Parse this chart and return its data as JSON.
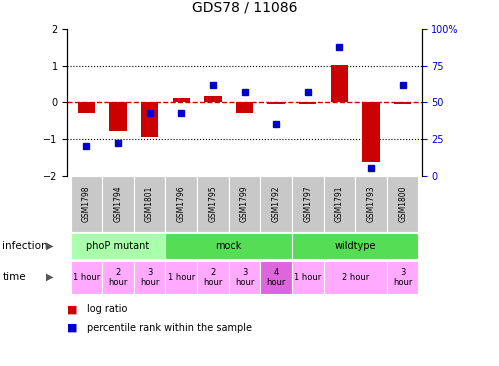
{
  "title": "GDS78 / 11086",
  "samples": [
    "GSM1798",
    "GSM1794",
    "GSM1801",
    "GSM1796",
    "GSM1795",
    "GSM1799",
    "GSM1792",
    "GSM1797",
    "GSM1791",
    "GSM1793",
    "GSM1800"
  ],
  "log_ratio": [
    -0.28,
    -0.78,
    -0.93,
    0.12,
    0.18,
    -0.3,
    -0.05,
    -0.05,
    1.02,
    -1.62,
    -0.05
  ],
  "percentile": [
    20,
    22,
    43,
    43,
    62,
    57,
    35,
    57,
    88,
    5,
    62
  ],
  "ylim": [
    -2,
    2
  ],
  "y2lim": [
    0,
    100
  ],
  "yticks": [
    -2,
    -1,
    0,
    1,
    2
  ],
  "y2ticks": [
    0,
    25,
    50,
    75,
    100
  ],
  "y2ticklabels": [
    "0",
    "25",
    "50",
    "75",
    "100%"
  ],
  "bar_color": "#cc0000",
  "dot_color": "#0000cc",
  "dashed_line_color": "#cc0000",
  "dotted_line_color": "#000000",
  "legend_red": "log ratio",
  "legend_blue": "percentile rank within the sample",
  "sample_bg_color": "#c8c8c8",
  "infection_groups": [
    {
      "label": "phoP mutant",
      "start": 0,
      "end": 3,
      "color": "#aaffaa"
    },
    {
      "label": "mock",
      "start": 3,
      "end": 7,
      "color": "#55dd55"
    },
    {
      "label": "wildtype",
      "start": 7,
      "end": 11,
      "color": "#55dd55"
    }
  ],
  "time_groups": [
    {
      "label": "1 hour",
      "start": 0,
      "end": 1,
      "color": "#ffaaff"
    },
    {
      "label": "2\nhour",
      "start": 1,
      "end": 2,
      "color": "#ffaaff"
    },
    {
      "label": "3\nhour",
      "start": 2,
      "end": 3,
      "color": "#ffaaff"
    },
    {
      "label": "1 hour",
      "start": 3,
      "end": 4,
      "color": "#ffaaff"
    },
    {
      "label": "2\nhour",
      "start": 4,
      "end": 5,
      "color": "#ffaaff"
    },
    {
      "label": "3\nhour",
      "start": 5,
      "end": 6,
      "color": "#ffaaff"
    },
    {
      "label": "4\nhour",
      "start": 6,
      "end": 7,
      "color": "#dd66dd"
    },
    {
      "label": "1 hour",
      "start": 7,
      "end": 8,
      "color": "#ffaaff"
    },
    {
      "label": "2 hour",
      "start": 8,
      "end": 10,
      "color": "#ffaaff"
    },
    {
      "label": "3\nhour",
      "start": 10,
      "end": 11,
      "color": "#ffaaff"
    }
  ]
}
